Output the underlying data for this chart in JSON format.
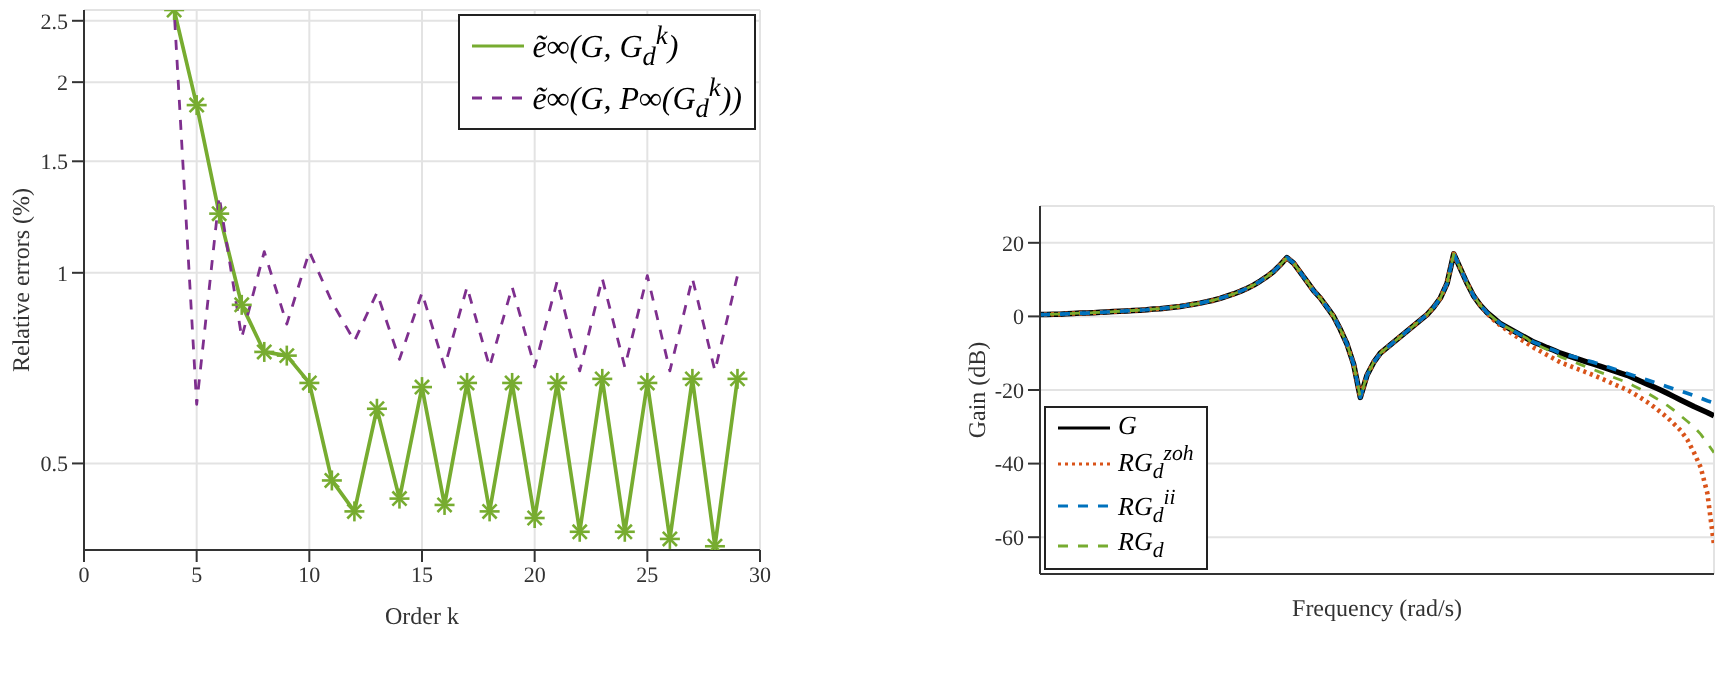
{
  "chart_data": [
    {
      "type": "line",
      "xlabel": "Order k",
      "ylabel": "Relative errors (%)",
      "x": [
        4,
        5,
        6,
        7,
        8,
        9,
        10,
        11,
        12,
        13,
        14,
        15,
        16,
        17,
        18,
        19,
        20,
        21,
        22,
        23,
        24,
        25,
        26,
        27,
        28,
        29
      ],
      "xlim": [
        0,
        30
      ],
      "xticks": [
        0,
        5,
        10,
        15,
        20,
        25,
        30
      ],
      "ylim": [
        0.365,
        2.6
      ],
      "yticks": [
        0.5,
        1,
        1.5,
        2,
        2.5
      ],
      "log": "y",
      "grid": true,
      "legend": "top right",
      "series": [
        {
          "name": "ẽ∞(G, G$_{d}$$^{k}$)",
          "color": "#77ac30",
          "marker": "cross",
          "line_style": "solid",
          "values": [
            2.6,
            1.84,
            1.24,
            0.89,
            0.75,
            0.74,
            0.67,
            0.47,
            0.42,
            0.61,
            0.44,
            0.66,
            0.43,
            0.67,
            0.42,
            0.67,
            0.41,
            0.67,
            0.39,
            0.68,
            0.39,
            0.67,
            0.38,
            0.68,
            0.37,
            0.68
          ]
        },
        {
          "name": "ẽ∞(G, P∞(G$_{d}$$^{k}$))",
          "color": "#7e2f8e",
          "marker": "none",
          "line_style": "dashed",
          "values": [
            2.6,
            0.62,
            1.32,
            0.79,
            1.08,
            0.83,
            1.08,
            0.9,
            0.78,
            0.93,
            0.73,
            0.93,
            0.71,
            0.95,
            0.71,
            0.95,
            0.71,
            0.97,
            0.7,
            0.98,
            0.71,
            0.99,
            0.7,
            0.98,
            0.7,
            0.99
          ]
        }
      ]
    },
    {
      "type": "line",
      "xlabel": "Frequency (rad/s)",
      "ylabel": "Gain (dB)",
      "categories": [
        null,
        null,
        null,
        null,
        null,
        null,
        null,
        null,
        null,
        null,
        null,
        null,
        null,
        null,
        null,
        null,
        null,
        null,
        null,
        null,
        null,
        null,
        null,
        null,
        null,
        null,
        null,
        null,
        null,
        null,
        null,
        null,
        null,
        null,
        null,
        null,
        null,
        null,
        null,
        null,
        null,
        null,
        null,
        null,
        null,
        null,
        null,
        null,
        null,
        null,
        null,
        null,
        null,
        null,
        null,
        null,
        null,
        null,
        null,
        null,
        null,
        null,
        null,
        null,
        null,
        null,
        null,
        null,
        null,
        null,
        null,
        null,
        null,
        null,
        null,
        null,
        null,
        null,
        null,
        null,
        null,
        null,
        null,
        null,
        null,
        null,
        null,
        null,
        null,
        null,
        null,
        null,
        null,
        null,
        null,
        null,
        null,
        null,
        null,
        null,
        null,
        null
      ],
      "ylim": [
        -70,
        30
      ],
      "yticks": [
        -60,
        -40,
        -20,
        0,
        20
      ],
      "grid": true,
      "tick_labels": "y",
      "legend": "bottom left",
      "series": [
        {
          "name": "G",
          "color": "#000000",
          "line_style": "solid",
          "values": [
            0.5,
            0.5,
            0.6,
            0.6,
            0.7,
            0.8,
            0.9,
            0.9,
            1.0,
            1.1,
            1.2,
            1.3,
            1.4,
            1.5,
            1.6,
            1.7,
            1.8,
            2.0,
            2.1,
            2.3,
            2.5,
            2.7,
            3.0,
            3.3,
            3.6,
            4.0,
            4.4,
            4.9,
            5.5,
            6.1,
            6.8,
            7.6,
            8.5,
            9.6,
            10.8,
            12.2,
            14,
            16,
            14.5,
            12,
            9.5,
            7,
            5,
            2.5,
            0,
            -3.5,
            -7.5,
            -13,
            -22,
            -16,
            -12.5,
            -10,
            -8.5,
            -7,
            -5.5,
            -4,
            -2.5,
            -1,
            0.5,
            2.5,
            5,
            9,
            17,
            13,
            9,
            5.5,
            3,
            1,
            -0.5,
            -2,
            -3,
            -4,
            -5,
            -6,
            -7,
            -7.7,
            -8.5,
            -9.2,
            -10,
            -10.6,
            -11.2,
            -11.8,
            -12.4,
            -13,
            -13.6,
            -14.2,
            -14.8,
            -15.4,
            -16,
            -16.8,
            -17.6,
            -18.4,
            -19.2,
            -20,
            -20.9,
            -21.8,
            -22.7,
            -23.6,
            -24.5,
            -25.3,
            -26.1,
            -27
          ]
        },
        {
          "name": "RG$_{d}$$^{zoh}$",
          "color": "#d95319",
          "line_style": "dotted",
          "values": [
            0.5,
            0.5,
            0.6,
            0.6,
            0.7,
            0.8,
            0.9,
            0.9,
            1.0,
            1.1,
            1.2,
            1.3,
            1.4,
            1.5,
            1.6,
            1.7,
            1.8,
            2.0,
            2.1,
            2.3,
            2.5,
            2.7,
            3.0,
            3.3,
            3.6,
            4.0,
            4.4,
            4.9,
            5.5,
            6.1,
            6.8,
            7.6,
            8.5,
            9.6,
            10.8,
            12.2,
            14,
            16,
            14.5,
            12,
            9.5,
            7,
            5,
            2.5,
            0,
            -3.5,
            -7.5,
            -13,
            -22,
            -16,
            -12.5,
            -10,
            -8.5,
            -7,
            -5.5,
            -4,
            -2.5,
            -1,
            0.5,
            2.5,
            5,
            9,
            17,
            13,
            9,
            5.5,
            3,
            0.8,
            -1,
            -2.5,
            -3.7,
            -5,
            -6.2,
            -7.3,
            -8.5,
            -9.5,
            -10.5,
            -11.5,
            -12.5,
            -13.2,
            -13.9,
            -14.6,
            -15.3,
            -16,
            -16.8,
            -17.6,
            -18.4,
            -19.2,
            -20,
            -21,
            -22.1,
            -23.3,
            -24.6,
            -26,
            -27.5,
            -29.2,
            -31,
            -33.5,
            -37,
            -41,
            -48,
            -62
          ]
        },
        {
          "name": "RG$_{d}$$^{ii}$",
          "color": "#0072bd",
          "line_style": "dashed",
          "values": [
            0.5,
            0.5,
            0.6,
            0.6,
            0.7,
            0.8,
            0.9,
            0.9,
            1.0,
            1.1,
            1.2,
            1.3,
            1.4,
            1.5,
            1.6,
            1.7,
            1.8,
            2.0,
            2.1,
            2.3,
            2.5,
            2.7,
            3.0,
            3.3,
            3.6,
            4.0,
            4.4,
            4.9,
            5.5,
            6.1,
            6.8,
            7.6,
            8.5,
            9.6,
            10.8,
            12.2,
            14,
            16,
            14.5,
            12,
            9.5,
            7,
            5,
            2.5,
            0,
            -3.5,
            -7.5,
            -13,
            -22,
            -16,
            -12.5,
            -10,
            -8.5,
            -7,
            -5.5,
            -4,
            -2.5,
            -1,
            0.5,
            2.5,
            5,
            9,
            17,
            13,
            9,
            5.5,
            3,
            1,
            -0.5,
            -2,
            -3,
            -4,
            -5,
            -6,
            -7,
            -7.7,
            -8.5,
            -9.2,
            -10,
            -10.5,
            -11,
            -11.5,
            -12,
            -12.5,
            -13.1,
            -13.7,
            -14.3,
            -14.9,
            -15.5,
            -16.1,
            -16.7,
            -17.3,
            -17.9,
            -18.5,
            -19.1,
            -19.7,
            -20.3,
            -20.9,
            -21.5,
            -22.2,
            -22.9,
            -23.5
          ]
        },
        {
          "name": "RG$_{d}$",
          "color": "#77ac30",
          "line_style": "dashed",
          "values": [
            0.5,
            0.5,
            0.6,
            0.6,
            0.7,
            0.8,
            0.9,
            0.9,
            1.0,
            1.1,
            1.2,
            1.3,
            1.4,
            1.5,
            1.6,
            1.7,
            1.8,
            2.0,
            2.1,
            2.3,
            2.5,
            2.7,
            3.0,
            3.3,
            3.6,
            4.0,
            4.4,
            4.9,
            5.5,
            6.1,
            6.8,
            7.6,
            8.5,
            9.6,
            10.8,
            12.2,
            14,
            16,
            14.5,
            12,
            9.5,
            7,
            5,
            2.5,
            0,
            -3.5,
            -7.5,
            -13,
            -22,
            -16,
            -12.5,
            -10,
            -8.5,
            -7,
            -5.5,
            -4,
            -2.5,
            -1,
            0.5,
            2.5,
            5,
            9,
            17,
            13,
            9,
            5.5,
            3,
            1,
            -0.5,
            -2,
            -3,
            -4,
            -5,
            -6,
            -7.5,
            -8.2,
            -9,
            -10,
            -11,
            -11.7,
            -12.4,
            -13.1,
            -13.8,
            -14.5,
            -15.2,
            -15.9,
            -16.6,
            -17.3,
            -18,
            -18.9,
            -19.8,
            -20.8,
            -21.9,
            -23,
            -24.2,
            -25.5,
            -27,
            -28.5,
            -30,
            -32,
            -34.5,
            -37
          ]
        }
      ]
    }
  ]
}
